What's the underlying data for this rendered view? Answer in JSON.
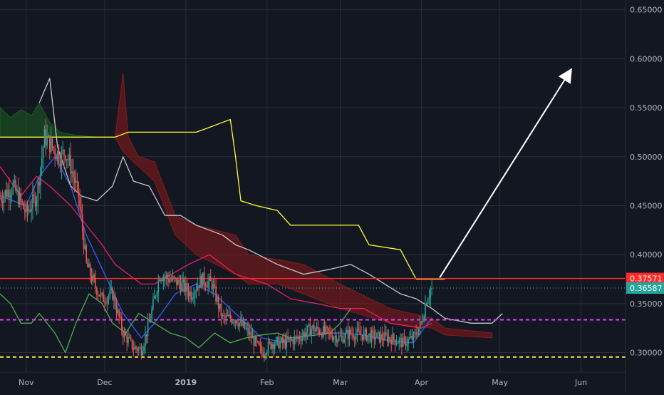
{
  "colors": {
    "background": "#131722",
    "grid": "#2a2e39",
    "axis_text": "#b2b5be",
    "candle_up": "#26a69a",
    "candle_down": "#ef5350",
    "resistance_line": "#ff2a2a",
    "current_price_line": "#4db6ac",
    "magenta_level": "#e040fb",
    "yellow_level": "#ffeb3b",
    "cloud_bearish": "#8b1a1a",
    "cloud_bullish": "#1b5e20",
    "conversion_line": "#2962ff",
    "base_line": "#e91e63",
    "lagging_span": "#4caf50",
    "long_base_line": "#ffff33",
    "span_line": "#c8c8c8",
    "arrow": "#ffffff"
  },
  "chart_data": {
    "type": "candlestick",
    "title": "",
    "ylim": [
      0.28,
      0.66
    ],
    "y_ticks": [
      "0.30000",
      "0.35000",
      "0.40000",
      "0.45000",
      "0.50000",
      "0.55000",
      "0.60000",
      "0.65000"
    ],
    "x_labels": [
      "Nov",
      "Dec",
      "2019",
      "Feb",
      "Mar",
      "Apr",
      "May",
      "Jun"
    ],
    "x_label_bold": "2019",
    "x_range": [
      "2018-10-22",
      "2019-06-18"
    ],
    "grid": true,
    "price_tags": [
      {
        "value": "0.37571",
        "price": 0.37571,
        "color": "#ff2a2a"
      },
      {
        "value": "0.36587",
        "price": 0.36587,
        "color": "#26a69a"
      }
    ],
    "horizontal_levels": [
      {
        "price": 0.37571,
        "style": "solid",
        "color": "#ff2a2a"
      },
      {
        "price": 0.36587,
        "style": "dotted",
        "color": "#4db6ac"
      },
      {
        "price": 0.3335,
        "style": "dashed",
        "color": "#e040fb"
      },
      {
        "price": 0.2955,
        "style": "dashed",
        "color": "#ffeb3b"
      }
    ],
    "projection_arrow": {
      "from": [
        "2019-04-08",
        0.3765
      ],
      "to": [
        "2019-05-28",
        0.588
      ]
    },
    "price_anchors": [
      [
        "2018-10-22",
        0.458
      ],
      [
        "2018-10-27",
        0.47
      ],
      [
        "2018-11-01",
        0.442
      ],
      [
        "2018-11-05",
        0.46
      ],
      [
        "2018-11-08",
        0.52
      ],
      [
        "2018-11-11",
        0.51
      ],
      [
        "2018-11-14",
        0.5
      ],
      [
        "2018-11-16",
        0.505
      ],
      [
        "2018-11-18",
        0.49
      ],
      [
        "2018-11-21",
        0.46
      ],
      [
        "2018-11-24",
        0.39
      ],
      [
        "2018-11-27",
        0.37
      ],
      [
        "2018-11-30",
        0.355
      ],
      [
        "2018-12-04",
        0.36
      ],
      [
        "2018-12-08",
        0.32
      ],
      [
        "2018-12-12",
        0.305
      ],
      [
        "2018-12-15",
        0.303
      ],
      [
        "2018-12-18",
        0.33
      ],
      [
        "2018-12-22",
        0.38
      ],
      [
        "2018-12-26",
        0.375
      ],
      [
        "2018-12-30",
        0.37
      ],
      [
        "2019-01-03",
        0.36
      ],
      [
        "2019-01-07",
        0.375
      ],
      [
        "2019-01-11",
        0.37
      ],
      [
        "2019-01-15",
        0.335
      ],
      [
        "2019-01-20",
        0.335
      ],
      [
        "2019-01-25",
        0.32
      ],
      [
        "2019-01-30",
        0.3
      ],
      [
        "2019-02-03",
        0.31
      ],
      [
        "2019-02-08",
        0.31
      ],
      [
        "2019-02-13",
        0.315
      ],
      [
        "2019-02-18",
        0.325
      ],
      [
        "2019-02-24",
        0.32
      ],
      [
        "2019-03-01",
        0.315
      ],
      [
        "2019-03-05",
        0.32
      ],
      [
        "2019-03-10",
        0.318
      ],
      [
        "2019-03-15",
        0.316
      ],
      [
        "2019-03-20",
        0.315
      ],
      [
        "2019-03-25",
        0.31
      ],
      [
        "2019-03-29",
        0.315
      ],
      [
        "2019-04-01",
        0.33
      ],
      [
        "2019-04-03",
        0.355
      ],
      [
        "2019-04-05",
        0.366
      ]
    ],
    "ichimoku_cloud": {
      "bearish_top": [
        [
          "2018-11-28",
          0.52
        ],
        [
          "2018-12-05",
          0.52
        ],
        [
          "2018-12-08",
          0.585
        ],
        [
          "2018-12-10",
          0.52
        ],
        [
          "2018-12-14",
          0.5
        ],
        [
          "2018-12-20",
          0.495
        ],
        [
          "2018-12-28",
          0.44
        ],
        [
          "2019-01-05",
          0.43
        ],
        [
          "2019-01-20",
          0.42
        ],
        [
          "2019-01-25",
          0.4
        ],
        [
          "2019-02-05",
          0.395
        ],
        [
          "2019-02-15",
          0.39
        ],
        [
          "2019-03-01",
          0.37
        ],
        [
          "2019-03-20",
          0.345
        ],
        [
          "2019-04-05",
          0.335
        ],
        [
          "2019-04-10",
          0.325
        ],
        [
          "2019-04-28",
          0.32
        ]
      ],
      "bearish_bottom": [
        [
          "2018-11-28",
          0.52
        ],
        [
          "2018-12-05",
          0.52
        ],
        [
          "2018-12-08",
          0.505
        ],
        [
          "2018-12-14",
          0.49
        ],
        [
          "2018-12-20",
          0.475
        ],
        [
          "2018-12-28",
          0.42
        ],
        [
          "2019-01-05",
          0.4
        ],
        [
          "2019-01-20",
          0.38
        ],
        [
          "2019-01-25",
          0.37
        ],
        [
          "2019-02-05",
          0.37
        ],
        [
          "2019-02-15",
          0.36
        ],
        [
          "2019-03-01",
          0.345
        ],
        [
          "2019-03-20",
          0.33
        ],
        [
          "2019-04-05",
          0.325
        ],
        [
          "2019-04-10",
          0.318
        ],
        [
          "2019-04-28",
          0.315
        ]
      ],
      "bullish_top": [
        [
          "2018-10-22",
          0.55
        ],
        [
          "2018-10-26",
          0.54
        ],
        [
          "2018-10-30",
          0.548
        ],
        [
          "2018-11-03",
          0.542
        ],
        [
          "2018-11-06",
          0.555
        ],
        [
          "2018-11-10",
          0.535
        ],
        [
          "2018-11-14",
          0.525
        ],
        [
          "2018-11-20",
          0.522
        ],
        [
          "2018-11-28",
          0.52
        ]
      ],
      "bullish_bottom": [
        [
          "2018-10-22",
          0.52
        ],
        [
          "2018-11-28",
          0.52
        ]
      ]
    },
    "series": [
      {
        "color": "#ffff33",
        "points": [
          [
            "2018-10-22",
            0.52
          ],
          [
            "2018-12-05",
            0.52
          ],
          [
            "2018-12-10",
            0.525
          ],
          [
            "2019-01-05",
            0.525
          ],
          [
            "2019-01-10",
            0.53
          ],
          [
            "2019-01-15",
            0.535
          ],
          [
            "2019-01-18",
            0.538
          ],
          [
            "2019-01-20",
            0.5
          ],
          [
            "2019-01-22",
            0.455
          ],
          [
            "2019-01-28",
            0.45
          ],
          [
            "2019-02-05",
            0.445
          ],
          [
            "2019-02-10",
            0.43
          ],
          [
            "2019-03-08",
            0.43
          ],
          [
            "2019-03-12",
            0.41
          ],
          [
            "2019-03-24",
            0.405
          ],
          [
            "2019-03-30",
            0.375
          ],
          [
            "2019-04-10",
            0.375
          ]
        ]
      },
      {
        "color": "#e91e63",
        "points": [
          [
            "2018-10-22",
            0.49
          ],
          [
            "2018-10-30",
            0.46
          ],
          [
            "2018-11-05",
            0.48
          ],
          [
            "2018-11-10",
            0.47
          ],
          [
            "2018-11-18",
            0.45
          ],
          [
            "2018-11-24",
            0.43
          ],
          [
            "2018-11-30",
            0.41
          ],
          [
            "2018-12-05",
            0.39
          ],
          [
            "2018-12-10",
            0.38
          ],
          [
            "2018-12-15",
            0.37
          ],
          [
            "2018-12-20",
            0.37
          ],
          [
            "2019-01-02",
            0.39
          ],
          [
            "2019-01-10",
            0.4
          ],
          [
            "2019-01-20",
            0.38
          ],
          [
            "2019-02-01",
            0.37
          ],
          [
            "2019-02-10",
            0.355
          ],
          [
            "2019-02-20",
            0.35
          ],
          [
            "2019-03-01",
            0.345
          ],
          [
            "2019-03-10",
            0.345
          ],
          [
            "2019-03-20",
            0.33
          ],
          [
            "2019-04-01",
            0.325
          ],
          [
            "2019-04-05",
            0.33
          ]
        ]
      },
      {
        "color": "#2962ff",
        "points": [
          [
            "2018-10-22",
            0.46
          ],
          [
            "2018-11-01",
            0.45
          ],
          [
            "2018-11-06",
            0.48
          ],
          [
            "2018-11-12",
            0.5
          ],
          [
            "2018-11-18",
            0.47
          ],
          [
            "2018-11-24",
            0.42
          ],
          [
            "2018-12-01",
            0.38
          ],
          [
            "2018-12-08",
            0.34
          ],
          [
            "2018-12-15",
            0.315
          ],
          [
            "2018-12-20",
            0.33
          ],
          [
            "2018-12-28",
            0.36
          ],
          [
            "2019-01-05",
            0.37
          ],
          [
            "2019-01-12",
            0.36
          ],
          [
            "2019-01-20",
            0.34
          ],
          [
            "2019-01-30",
            0.315
          ],
          [
            "2019-02-08",
            0.31
          ],
          [
            "2019-02-18",
            0.32
          ],
          [
            "2019-03-01",
            0.32
          ],
          [
            "2019-03-10",
            0.318
          ],
          [
            "2019-03-20",
            0.312
          ],
          [
            "2019-03-29",
            0.31
          ],
          [
            "2019-04-02",
            0.325
          ],
          [
            "2019-04-05",
            0.335
          ]
        ]
      },
      {
        "color": "#4caf50",
        "points": [
          [
            "2018-10-22",
            0.36
          ],
          [
            "2018-10-26",
            0.35
          ],
          [
            "2018-10-30",
            0.33
          ],
          [
            "2018-11-03",
            0.33
          ],
          [
            "2018-11-06",
            0.34
          ],
          [
            "2018-11-09",
            0.33
          ],
          [
            "2018-11-12",
            0.32
          ],
          [
            "2018-11-16",
            0.3
          ],
          [
            "2018-11-20",
            0.33
          ],
          [
            "2018-11-25",
            0.36
          ],
          [
            "2018-11-30",
            0.35
          ],
          [
            "2018-12-04",
            0.33
          ],
          [
            "2018-12-09",
            0.32
          ],
          [
            "2018-12-14",
            0.34
          ],
          [
            "2018-12-20",
            0.33
          ],
          [
            "2018-12-26",
            0.32
          ],
          [
            "2019-01-01",
            0.315
          ],
          [
            "2019-01-06",
            0.305
          ],
          [
            "2019-01-12",
            0.32
          ],
          [
            "2019-01-18",
            0.31
          ],
          [
            "2019-01-24",
            0.315
          ],
          [
            "2019-01-30",
            0.318
          ],
          [
            "2019-02-05",
            0.32
          ],
          [
            "2019-02-10",
            0.315
          ],
          [
            "2019-02-20",
            0.318
          ],
          [
            "2019-02-25",
            0.32
          ],
          [
            "2019-03-01",
            0.33
          ],
          [
            "2019-03-05",
            0.345
          ]
        ]
      },
      {
        "color": "#c8c8c8",
        "points": [
          [
            "2018-11-06",
            0.555
          ],
          [
            "2018-11-10",
            0.58
          ],
          [
            "2018-11-13",
            0.51
          ],
          [
            "2018-11-18",
            0.47
          ],
          [
            "2018-11-22",
            0.46
          ],
          [
            "2018-11-28",
            0.455
          ],
          [
            "2018-12-04",
            0.47
          ],
          [
            "2018-12-08",
            0.5
          ],
          [
            "2018-12-12",
            0.475
          ],
          [
            "2018-12-18",
            0.47
          ],
          [
            "2018-12-24",
            0.44
          ],
          [
            "2018-12-30",
            0.44
          ],
          [
            "2019-01-05",
            0.43
          ],
          [
            "2019-01-10",
            0.425
          ],
          [
            "2019-01-15",
            0.42
          ],
          [
            "2019-01-20",
            0.41
          ],
          [
            "2019-01-25",
            0.405
          ],
          [
            "2019-02-05",
            0.39
          ],
          [
            "2019-02-15",
            0.38
          ],
          [
            "2019-02-25",
            0.385
          ],
          [
            "2019-03-05",
            0.39
          ],
          [
            "2019-03-12",
            0.38
          ],
          [
            "2019-03-18",
            0.37
          ],
          [
            "2019-03-24",
            0.36
          ],
          [
            "2019-03-30",
            0.355
          ],
          [
            "2019-04-05",
            0.345
          ],
          [
            "2019-04-10",
            0.335
          ],
          [
            "2019-04-20",
            0.33
          ],
          [
            "2019-04-28",
            0.33
          ],
          [
            "2019-05-02",
            0.34
          ]
        ]
      }
    ]
  }
}
